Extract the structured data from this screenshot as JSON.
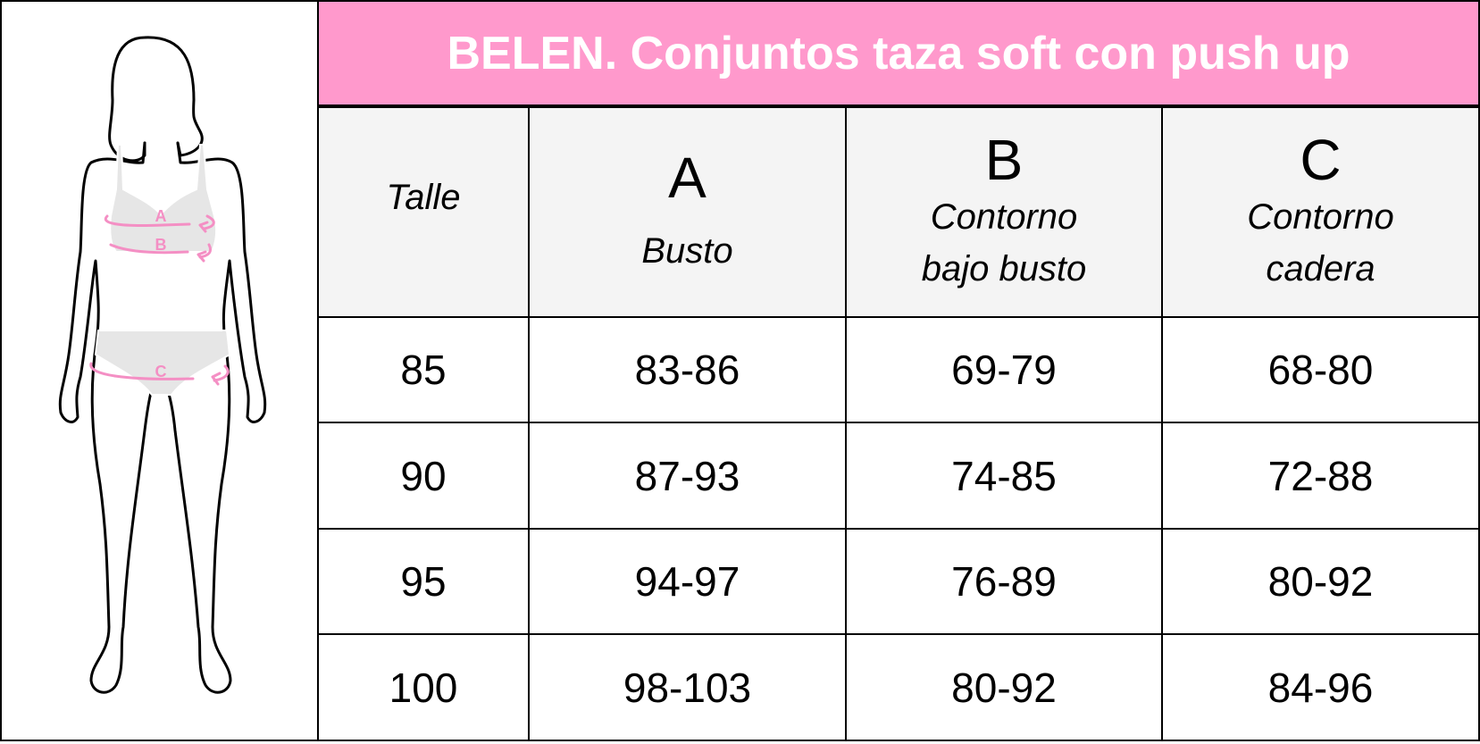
{
  "title": "BELEN. Conjuntos taza soft con push up",
  "colors": {
    "header_bg": "#ff99cc",
    "header_text": "#ffffff",
    "column_header_bg": "#f4f4f4",
    "measure_marker": "#f48fc4"
  },
  "figure": {
    "icon": "body-measurement-silhouette-icon",
    "markers": [
      "A",
      "B",
      "C"
    ]
  },
  "columns": [
    {
      "letter": "",
      "label_lines": [
        "Talle"
      ]
    },
    {
      "letter": "A",
      "label_lines": [
        "Busto"
      ]
    },
    {
      "letter": "B",
      "label_lines": [
        "Contorno",
        "bajo busto"
      ]
    },
    {
      "letter": "C",
      "label_lines": [
        "Contorno",
        "cadera"
      ]
    }
  ],
  "rows": [
    [
      "85",
      "83-86",
      "69-79",
      "68-80"
    ],
    [
      "90",
      "87-93",
      "74-85",
      "72-88"
    ],
    [
      "95",
      "94-97",
      "76-89",
      "80-92"
    ],
    [
      "100",
      "98-103",
      "80-92",
      "84-96"
    ]
  ]
}
